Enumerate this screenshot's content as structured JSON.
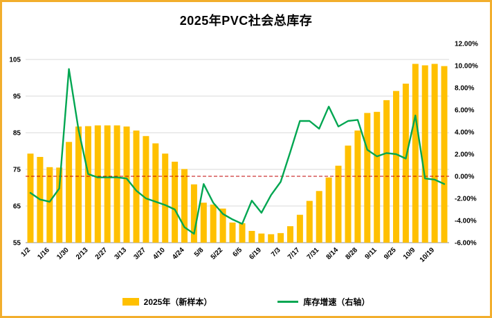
{
  "frame": {
    "border_color": "#f2ae2c",
    "background": "#ffffff"
  },
  "chart_data": {
    "type": "bar+line",
    "title": "2025年PVC社会总库存",
    "xlabel": "",
    "ylabel": "",
    "grid": true,
    "legend_position": "bottom",
    "x_tick_labels": [
      "1/2",
      "1/16",
      "1/30",
      "2/13",
      "2/27",
      "3/13",
      "3/27",
      "4/10",
      "4/24",
      "5/8",
      "5/22",
      "6/5",
      "6/19",
      "7/3",
      "7/17",
      "7/31",
      "8/14",
      "8/28",
      "9/11",
      "9/25",
      "10/9",
      "10/19"
    ],
    "x_label_every": 2,
    "left_axis": {
      "min": 55,
      "max": 105,
      "ticks": [
        55,
        65,
        75,
        85,
        95,
        105
      ],
      "top_fraction": 0.92
    },
    "right_axis": {
      "min": -6,
      "max": 12,
      "tick_step": 2,
      "tick_labels": [
        "12.00%",
        "10.00%",
        "8.00%",
        "6.00%",
        "4.00%",
        "2.00%",
        "0.00%",
        "-2.00%",
        "-4.00%",
        "-6.00%"
      ]
    },
    "zero_line": {
      "value": 0,
      "axis": "right",
      "color": "#c00000",
      "style": "dashed"
    },
    "series": [
      {
        "name": "2025年（新样本）",
        "type": "bar",
        "axis": "left",
        "color": "#ffc000",
        "values": [
          79.3,
          78.4,
          75.6,
          75.5,
          82.5,
          86.7,
          86.8,
          87.0,
          87.0,
          87.0,
          86.7,
          85.6,
          84.1,
          82.1,
          79.3,
          77.1,
          75.1,
          70.9,
          65.9,
          65.4,
          64.3,
          60.5,
          60.3,
          58.2,
          57.5,
          57.3,
          57.6,
          59.5,
          62.6,
          66.4,
          69.1,
          72.8,
          76.0,
          81.5,
          85.6,
          90.4,
          90.7,
          93.9,
          96.4,
          98.4,
          103.8,
          103.4,
          103.8,
          103.2
        ]
      },
      {
        "name": "库存增速（右轴）",
        "type": "line",
        "axis": "right",
        "color": "#00a651",
        "values": [
          -1.5,
          -2.1,
          -2.3,
          -1.1,
          9.7,
          4.2,
          0.2,
          -0.1,
          -0.1,
          -0.1,
          -0.2,
          -1.3,
          -2.0,
          -2.3,
          -2.6,
          -3.0,
          -4.6,
          -5.2,
          -0.7,
          -2.4,
          -3.4,
          -3.9,
          -4.3,
          -2.2,
          -3.3,
          -1.7,
          -0.5,
          2.2,
          5.0,
          5.0,
          4.3,
          6.3,
          4.5,
          5.0,
          5.1,
          2.4,
          1.8,
          2.1,
          2.0,
          1.6,
          5.5,
          -0.2,
          -0.3,
          -0.7
        ]
      }
    ]
  }
}
